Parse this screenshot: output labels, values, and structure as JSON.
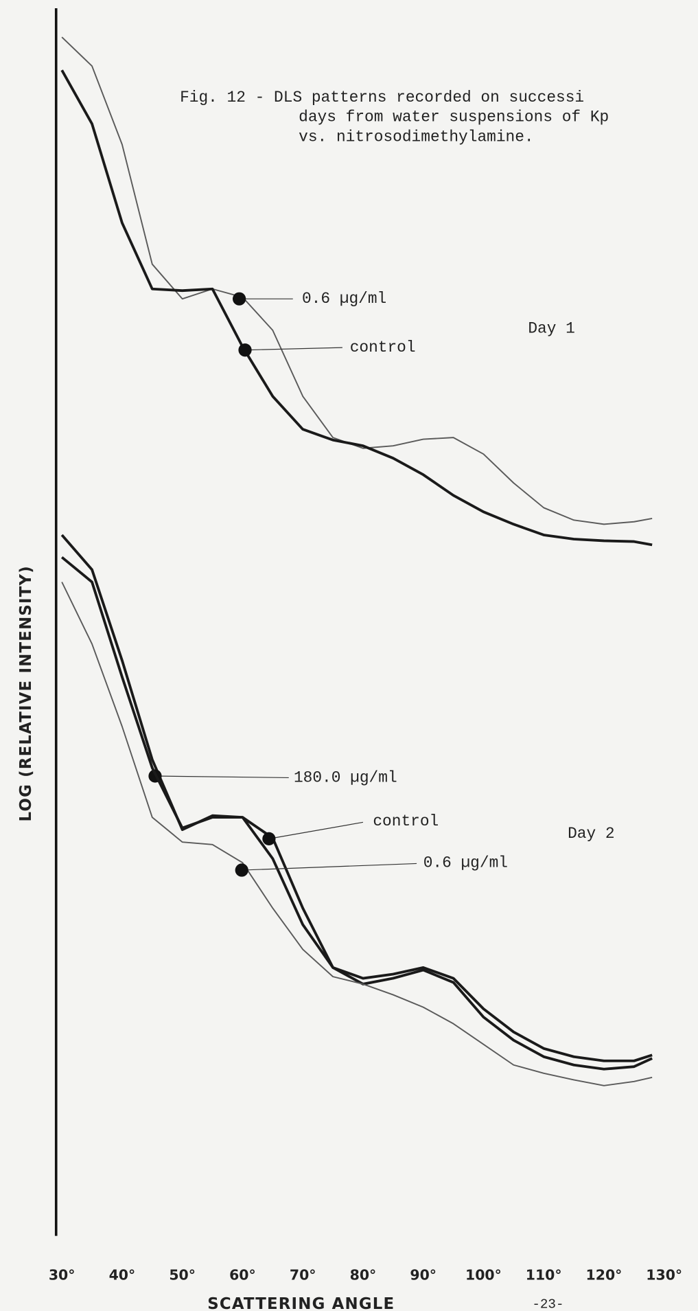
{
  "chart_data": {
    "type": "line",
    "title": [
      "Fig. 12 - DLS patterns recorded on successi",
      "days from water suspensions of Kp",
      "vs. nitrosodimethylamine."
    ],
    "x_label": "SCATTERING ANGLE",
    "y_label": "LOG (RELATIVE INTENSITY)",
    "page_number": "-23-",
    "annotations": [
      "Day 1",
      "Day 2"
    ],
    "x": [
      30,
      35,
      40,
      45,
      50,
      55,
      60,
      65,
      70,
      75,
      80,
      85,
      90,
      95,
      100,
      105,
      110,
      115,
      120,
      125,
      128
    ],
    "xlim": [
      30,
      130
    ],
    "xticks": [
      {
        "value": 30,
        "label": "30°"
      },
      {
        "value": 40,
        "label": "40°"
      },
      {
        "value": 50,
        "label": "50°"
      },
      {
        "value": 60,
        "label": "60°"
      },
      {
        "value": 70,
        "label": "70°"
      },
      {
        "value": 80,
        "label": "80°"
      },
      {
        "value": 90,
        "label": "90°"
      },
      {
        "value": 100,
        "label": "100°"
      },
      {
        "value": 110,
        "label": "110°"
      },
      {
        "value": 120,
        "label": "120°"
      },
      {
        "value": 130,
        "label": "130°"
      }
    ],
    "ylim": [
      0,
      1480
    ],
    "series": [
      {
        "name": "0.6 µg/ml",
        "color": "#5a5a5a",
        "values": [
          1450,
          1415,
          1320,
          1175,
          1133,
          1145,
          1135,
          1095,
          1015,
          965,
          952,
          955,
          963,
          965,
          945,
          910,
          880,
          865,
          860,
          863,
          867
        ]
      },
      {
        "name": "control",
        "color": "#1a1a1a",
        "values": [
          1410,
          1345,
          1225,
          1145,
          1143,
          1145,
          1075,
          1015,
          975,
          962,
          955,
          940,
          920,
          895,
          875,
          860,
          847,
          842,
          840,
          839,
          835
        ]
      },
      {
        "name": "180.0 µg/ml",
        "color": "#1a1a1a",
        "values": [
          847,
          805,
          695,
          575,
          490,
          507,
          505,
          455,
          375,
          323,
          310,
          315,
          323,
          310,
          273,
          245,
          225,
          215,
          210,
          210,
          217
        ]
      },
      {
        "name": "control",
        "color": "#1a1a1a",
        "values": [
          820,
          790,
          675,
          565,
          492,
          505,
          505,
          480,
          395,
          323,
          303,
          310,
          320,
          305,
          263,
          235,
          215,
          205,
          200,
          203,
          213
        ]
      },
      {
        "name": "0.6 µg/ml",
        "color": "#5a5a5a",
        "values": [
          790,
          715,
          615,
          505,
          475,
          472,
          450,
          395,
          345,
          312,
          303,
          290,
          275,
          255,
          230,
          205,
          195,
          187,
          180,
          185,
          190
        ]
      }
    ]
  }
}
